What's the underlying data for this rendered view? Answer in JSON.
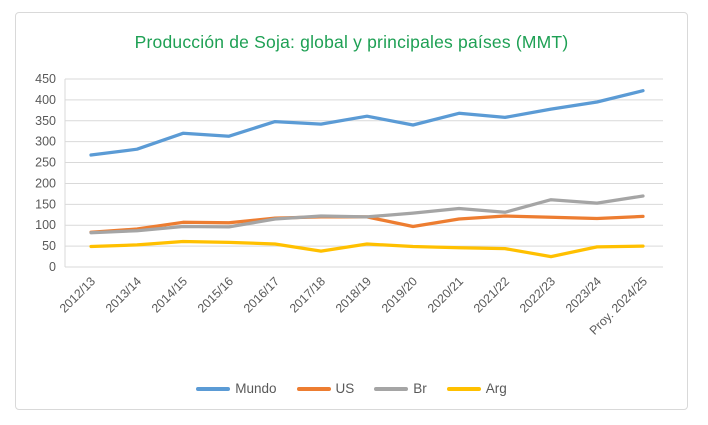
{
  "chart_data": {
    "type": "line",
    "title": "Producción de Soja: global y principales países (MMT)",
    "title_color": "#1EA054",
    "categories": [
      "2012/13",
      "2013/14",
      "2014/15",
      "2015/16",
      "2016/17",
      "2017/18",
      "2018/19",
      "2019/20",
      "2020/21",
      "2021/22",
      "2022/23",
      "2023/24",
      "Proy. 2024/25"
    ],
    "series": [
      {
        "name": "Mundo",
        "color": "#5B9BD5",
        "values": [
          268,
          282,
          320,
          313,
          348,
          342,
          361,
          340,
          368,
          358,
          378,
          395,
          422
        ]
      },
      {
        "name": "US",
        "color": "#ED7D31",
        "values": [
          83,
          91,
          107,
          106,
          117,
          120,
          120,
          97,
          115,
          122,
          119,
          116,
          121
        ]
      },
      {
        "name": "Br",
        "color": "#A5A5A5",
        "values": [
          82,
          87,
          97,
          96,
          115,
          122,
          120,
          129,
          140,
          131,
          161,
          153,
          170
        ]
      },
      {
        "name": "Arg",
        "color": "#FFC000",
        "values": [
          49,
          53,
          61,
          59,
          55,
          38,
          55,
          49,
          46,
          44,
          25,
          48,
          50
        ]
      }
    ],
    "ylim": [
      0,
      450
    ],
    "ytick_step": 50,
    "ytick_labels": [
      "0",
      "50",
      "100",
      "150",
      "200",
      "250",
      "300",
      "350",
      "400",
      "450"
    ],
    "grid": "horizontal",
    "gridline_color": "#D9D9D9",
    "axis_label_color": "#595959",
    "legend_position": "bottom",
    "legend_labels": [
      "Mundo",
      "US",
      "Br",
      "Arg"
    ]
  }
}
